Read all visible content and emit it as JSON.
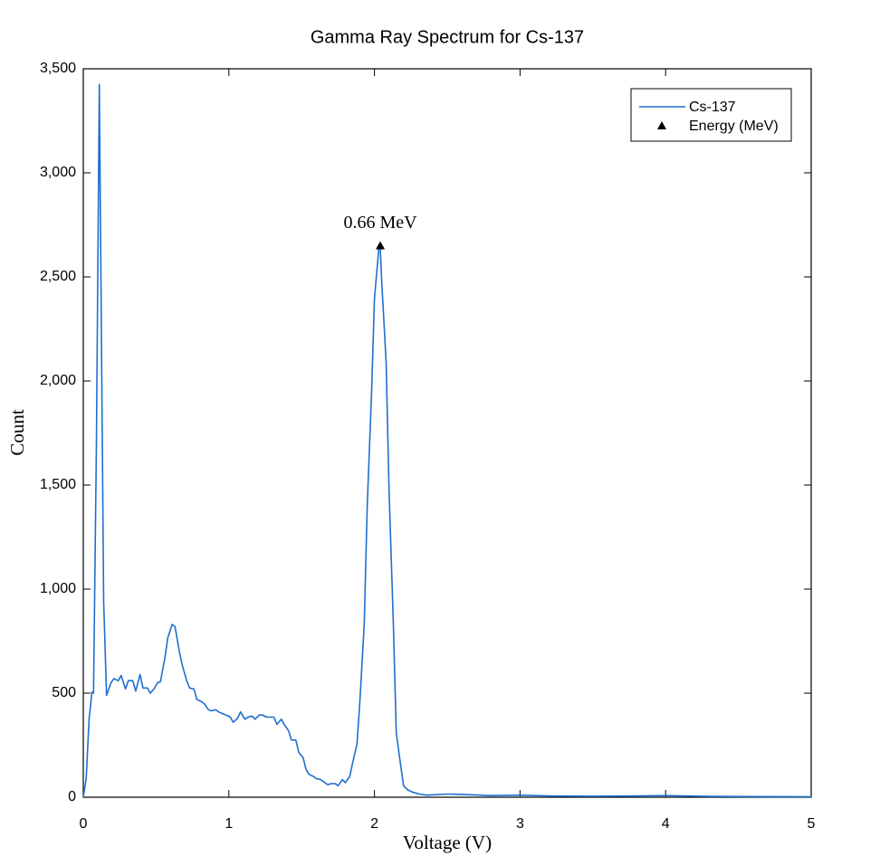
{
  "chart_data": {
    "type": "line",
    "title": "Gamma Ray Spectrum for Cs-137",
    "xlabel": "Voltage (V)",
    "ylabel": "Count",
    "xlim": [
      0,
      5
    ],
    "ylim": [
      0,
      3500
    ],
    "xticks": [
      0,
      1,
      2,
      3,
      4,
      5
    ],
    "yticks": [
      0,
      500,
      {
        "value": 1000,
        "label": "1,000"
      },
      {
        "value": 1500,
        "label": "1,500"
      },
      {
        "value": 2000,
        "label": "2,000"
      },
      {
        "value": 2500,
        "label": "2,500"
      },
      {
        "value": 3000,
        "label": "3,000"
      },
      {
        "value": 3500,
        "label": "3,500"
      }
    ],
    "grid": false,
    "legend": "upper right",
    "series": [
      {
        "name": "Cs-137",
        "color": "#1f6fce",
        "x": [
          0,
          0.02,
          0.04,
          0.06,
          0.07,
          0.09,
          0.11,
          0.14,
          0.16,
          0.19,
          0.21,
          0.24,
          0.26,
          0.29,
          0.31,
          0.34,
          0.36,
          0.39,
          0.41,
          0.44,
          0.46,
          0.49,
          0.51,
          0.53,
          0.56,
          0.58,
          0.61,
          0.63,
          0.66,
          0.68,
          0.71,
          0.73,
          0.76,
          0.78,
          0.81,
          0.83,
          0.86,
          0.88,
          0.91,
          0.93,
          0.96,
          0.98,
          1.01,
          1.03,
          1.06,
          1.08,
          1.11,
          1.13,
          1.16,
          1.18,
          1.21,
          1.23,
          1.26,
          1.28,
          1.31,
          1.33,
          1.36,
          1.38,
          1.41,
          1.43,
          1.46,
          1.48,
          1.51,
          1.53,
          1.55,
          1.58,
          1.6,
          1.63,
          1.65,
          1.68,
          1.7,
          1.73,
          1.75,
          1.78,
          1.8,
          1.83,
          1.85,
          1.88,
          1.9,
          1.93,
          1.95,
          1.98,
          2.0,
          2.03,
          2.04,
          2.05,
          2.08,
          2.1,
          2.13,
          2.15,
          2.18,
          2.2,
          2.23,
          2.26,
          2.31,
          2.36,
          2.5,
          2.65,
          2.8,
          3.0,
          3.2,
          3.5,
          3.8,
          4.0,
          4.3,
          4.6,
          5.0
        ],
        "values": [
          0,
          90,
          375,
          505,
          500,
          1700,
          3425,
          940,
          490,
          550,
          570,
          560,
          585,
          520,
          560,
          560,
          510,
          590,
          525,
          525,
          500,
          525,
          550,
          555,
          665,
          765,
          830,
          820,
          700,
          635,
          560,
          525,
          520,
          470,
          460,
          450,
          420,
          415,
          420,
          410,
          400,
          395,
          385,
          360,
          380,
          410,
          375,
          385,
          390,
          375,
          395,
          395,
          385,
          385,
          385,
          350,
          375,
          350,
          320,
          275,
          275,
          215,
          190,
          135,
          110,
          100,
          90,
          85,
          75,
          60,
          65,
          65,
          55,
          85,
          70,
          100,
          165,
          255,
          460,
          830,
          1395,
          1940,
          2395,
          2635,
          2640,
          2480,
          2090,
          1480,
          830,
          310,
          155,
          55,
          35,
          25,
          15,
          10,
          15,
          12,
          8,
          10,
          6,
          5,
          6,
          8,
          4,
          3,
          2
        ]
      },
      {
        "name": "Energy (MeV)",
        "color": "#000000",
        "marker": "triangle",
        "x": [
          2.04
        ],
        "values": [
          2650
        ],
        "annotation": "0.66 MeV"
      }
    ]
  }
}
